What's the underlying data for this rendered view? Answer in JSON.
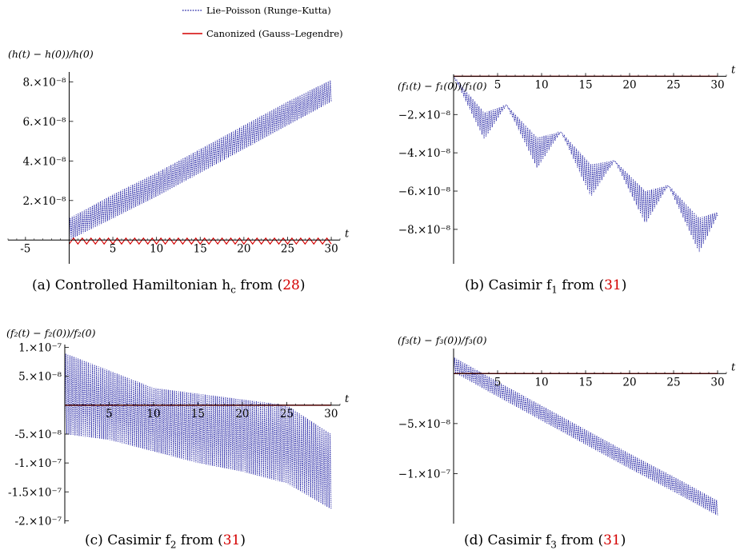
{
  "legend": {
    "entries": [
      {
        "label": "Lie–Poisson (Runge–Kutta)",
        "color": "#1a1aa0",
        "style": "dotted"
      },
      {
        "label": "Canonized (Gauss–Legendre)",
        "color": "#d40000",
        "style": "solid"
      }
    ]
  },
  "captions": [
    {
      "prefix": "(a) Controlled Hamiltonian h",
      "sub": "c",
      "mid": " from (",
      "ref": "28",
      "suffix": ")"
    },
    {
      "prefix": "(b) Casimir f",
      "sub": "1",
      "mid": " from (",
      "ref": "31",
      "suffix": ")"
    },
    {
      "prefix": "(c) Casimir f",
      "sub": "2",
      "mid": " from (",
      "ref": "31",
      "suffix": ")"
    },
    {
      "prefix": "(d) Casimir f",
      "sub": "3",
      "mid": " from (",
      "ref": "31",
      "suffix": ")"
    }
  ],
  "colors": {
    "lie_poisson": "#1a1aa0",
    "canonized": "#d40000",
    "ref_link": "#d40000"
  },
  "chart_data": [
    {
      "type": "line",
      "title": "(a) Controlled Hamiltonian h_c from (28)",
      "ylabel": "(h(t) − h(0))/h(0)",
      "xlabel": "t",
      "xlim": [
        -7,
        31
      ],
      "ylim": [
        -1.2e-08,
        8.5e-08
      ],
      "xticks": [
        -5,
        5,
        10,
        15,
        20,
        25,
        30
      ],
      "yticks": [
        2e-08,
        4e-08,
        6e-08,
        8e-08
      ],
      "ytick_labels": [
        "2.×10⁻⁸",
        "4.×10⁻⁸",
        "6.×10⁻⁸",
        "8.×10⁻⁸"
      ],
      "series": [
        {
          "name": "Lie–Poisson (Runge–Kutta)",
          "x": [
            0,
            5,
            10,
            15,
            20,
            25,
            30
          ],
          "y_low": [
            0.0,
            1.1e-08,
            2.2e-08,
            3.4e-08,
            4.6e-08,
            5.8e-08,
            7e-08
          ],
          "y_high": [
            1.1e-08,
            2.3e-08,
            3.4e-08,
            4.6e-08,
            5.8e-08,
            7e-08,
            8.1e-08
          ]
        },
        {
          "name": "Canonized (Gauss–Legendre)",
          "x": [
            0,
            30
          ],
          "y_low": [
            -2e-09,
            -2e-09
          ],
          "y_high": [
            1e-09,
            1e-09
          ]
        }
      ]
    },
    {
      "type": "line",
      "title": "(b) Casimir f_1 from (31)",
      "ylabel": "(f₁(t) − f₁(0))/f₁(0)",
      "xlabel": "t",
      "xlim": [
        0,
        31
      ],
      "ylim": [
        -9.8e-08,
        1e-09
      ],
      "xticks": [
        5,
        10,
        15,
        20,
        25,
        30
      ],
      "yticks": [
        -2e-08,
        -4e-08,
        -6e-08,
        -8e-08
      ],
      "ytick_labels": [
        "−2.×10⁻⁸",
        "−4.×10⁻⁸",
        "−6.×10⁻⁸",
        "−8.×10⁻⁸"
      ],
      "series": [
        {
          "name": "Lie–Poisson (Runge–Kutta)",
          "x": [
            0,
            3.5,
            6.0,
            9.5,
            12.2,
            15.6,
            18.3,
            21.8,
            24.4,
            27.9,
            30
          ],
          "y_low": [
            0,
            -3.3e-08,
            -1.5e-08,
            -4.8e-08,
            -2.9e-08,
            -6.3e-08,
            -4.4e-08,
            -7.7e-08,
            -5.7e-08,
            -9.2e-08,
            -7.3e-08
          ],
          "y_high": [
            0,
            -1.9e-08,
            -1.5e-08,
            -3.2e-08,
            -2.9e-08,
            -4.6e-08,
            -4.4e-08,
            -6e-08,
            -5.7e-08,
            -7.4e-08,
            -7.1e-08
          ]
        },
        {
          "name": "Canonized (Gauss–Legendre)",
          "x": [
            0,
            30
          ],
          "y": [
            0,
            0
          ]
        }
      ]
    },
    {
      "type": "line",
      "title": "(c) Casimir f_2 from (31)",
      "ylabel": "(f₂(t) − f₂(0))/f₂(0)",
      "xlabel": "t",
      "xlim": [
        0,
        31
      ],
      "ylim": [
        -2.05e-07,
        1.05e-07
      ],
      "xticks": [
        5,
        10,
        15,
        20,
        25,
        30
      ],
      "yticks": [
        1e-07,
        5e-08,
        -5e-08,
        -1e-07,
        -1.5e-07,
        -2e-07
      ],
      "ytick_labels": [
        "1.×10⁻⁷",
        "5.×10⁻⁸",
        "-5.×10⁻⁸",
        "-1.×10⁻⁷",
        "-1.5×10⁻⁷",
        "-2.×10⁻⁷"
      ],
      "series": [
        {
          "name": "Lie–Poisson (Runge–Kutta)",
          "x": [
            0,
            5,
            10,
            15,
            20,
            25,
            30
          ],
          "y_low": [
            -5e-08,
            -6e-08,
            -8e-08,
            -1e-07,
            -1.15e-07,
            -1.35e-07,
            -1.8e-07
          ],
          "y_high": [
            9e-08,
            6e-08,
            3e-08,
            2e-08,
            1e-08,
            0,
            -5e-08
          ]
        },
        {
          "name": "Canonized (Gauss–Legendre)",
          "x": [
            0,
            30
          ],
          "y": [
            0,
            0
          ]
        }
      ]
    },
    {
      "type": "line",
      "title": "(d) Casimir f_3 from (31)",
      "ylabel": "(f₃(t) − f₃(0))/f₃(0)",
      "xlabel": "t",
      "xlim": [
        0,
        31
      ],
      "ylim": [
        -1.5e-07,
        2.5e-08
      ],
      "xticks": [
        5,
        10,
        15,
        20,
        25,
        30
      ],
      "yticks": [
        -5e-08,
        -1e-07
      ],
      "ytick_labels": [
        "−5.×10⁻⁸",
        "−1.×10⁻⁷"
      ],
      "series": [
        {
          "name": "Lie–Poisson (Runge–Kutta)",
          "x": [
            0,
            5,
            10,
            15,
            20,
            25,
            30
          ],
          "y_low": [
            1.5e-09,
            -2.3e-08,
            -4.7e-08,
            -7.1e-08,
            -9.5e-08,
            -1.18e-07,
            -1.42e-07
          ],
          "y_high": [
            1.65e-08,
            -8e-09,
            -3.2e-08,
            -5.6e-08,
            -8e-08,
            -1.03e-07,
            -1.27e-07
          ]
        },
        {
          "name": "Canonized (Gauss–Legendre)",
          "x": [
            0,
            30
          ],
          "y": [
            0,
            0
          ]
        }
      ]
    }
  ]
}
